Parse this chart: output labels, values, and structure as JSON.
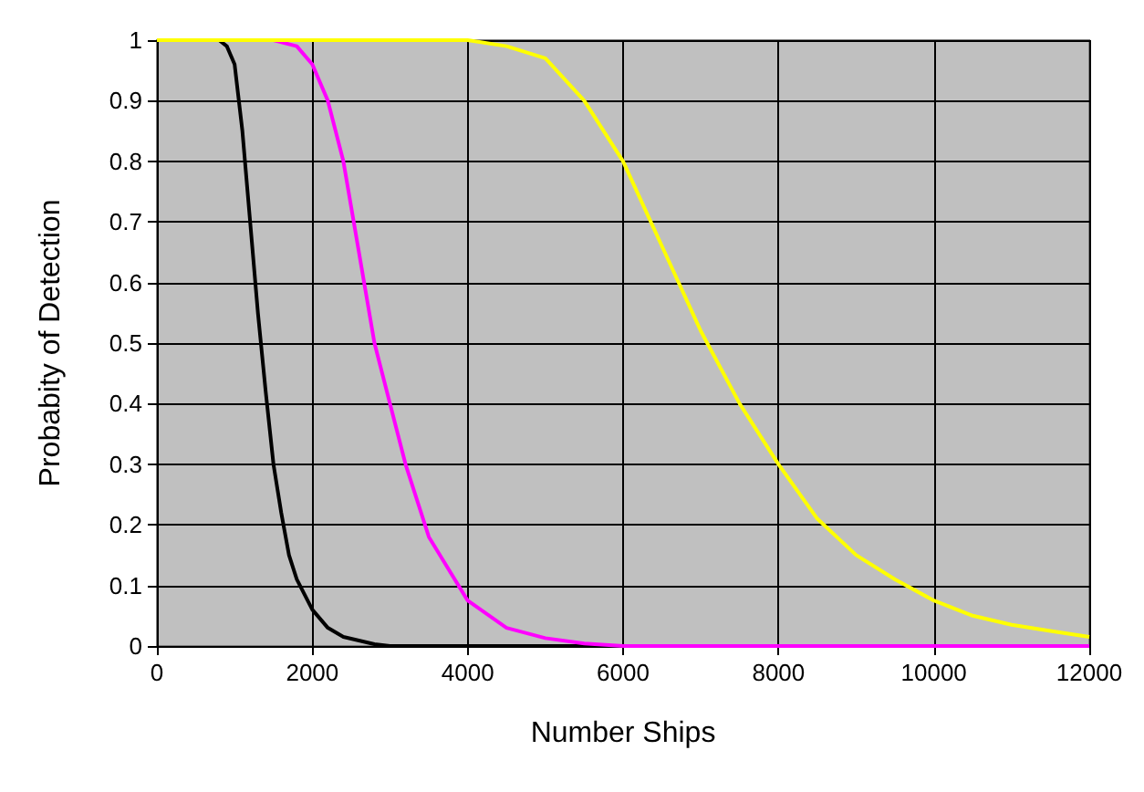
{
  "chart_data": {
    "type": "line",
    "xlabel": "Number Ships",
    "ylabel": "Probabity of Detection",
    "xlim": [
      0,
      12000
    ],
    "xticks": [
      0,
      2000,
      4000,
      6000,
      8000,
      10000,
      12000
    ],
    "ylim": [
      0,
      1
    ],
    "yticks": [
      0,
      0.1,
      0.2,
      0.3,
      0.4,
      0.5,
      0.6,
      0.7,
      0.8,
      0.9,
      1
    ],
    "grid": true,
    "marker": "none",
    "line_style": "solid",
    "series": [
      {
        "color": "#000000",
        "x": [
          0,
          800,
          900,
          1000,
          1100,
          1200,
          1300,
          1400,
          1500,
          1600,
          1700,
          1800,
          2000,
          2200,
          2400,
          2800,
          3000,
          12000
        ],
        "values": [
          1,
          1,
          0.99,
          0.96,
          0.85,
          0.7,
          0.55,
          0.42,
          0.3,
          0.22,
          0.15,
          0.11,
          0.06,
          0.03,
          0.015,
          0.003,
          0,
          0
        ]
      },
      {
        "color": "#ff00ff",
        "x": [
          0,
          1500,
          1800,
          2000,
          2200,
          2400,
          2600,
          2800,
          3000,
          3200,
          3500,
          4000,
          4500,
          5000,
          5500,
          6000,
          12000
        ],
        "values": [
          1,
          1,
          0.99,
          0.96,
          0.9,
          0.8,
          0.65,
          0.5,
          0.4,
          0.3,
          0.18,
          0.075,
          0.03,
          0.013,
          0.004,
          0,
          0
        ]
      },
      {
        "color": "#ffff00",
        "x": [
          0,
          4000,
          4500,
          5000,
          5500,
          6000,
          6500,
          7000,
          7500,
          8000,
          8500,
          9000,
          9500,
          10000,
          10500,
          11000,
          11500,
          12000
        ],
        "values": [
          1,
          1,
          0.99,
          0.97,
          0.9,
          0.8,
          0.66,
          0.52,
          0.4,
          0.3,
          0.21,
          0.15,
          0.11,
          0.075,
          0.05,
          0.035,
          0.025,
          0.015
        ]
      }
    ]
  }
}
